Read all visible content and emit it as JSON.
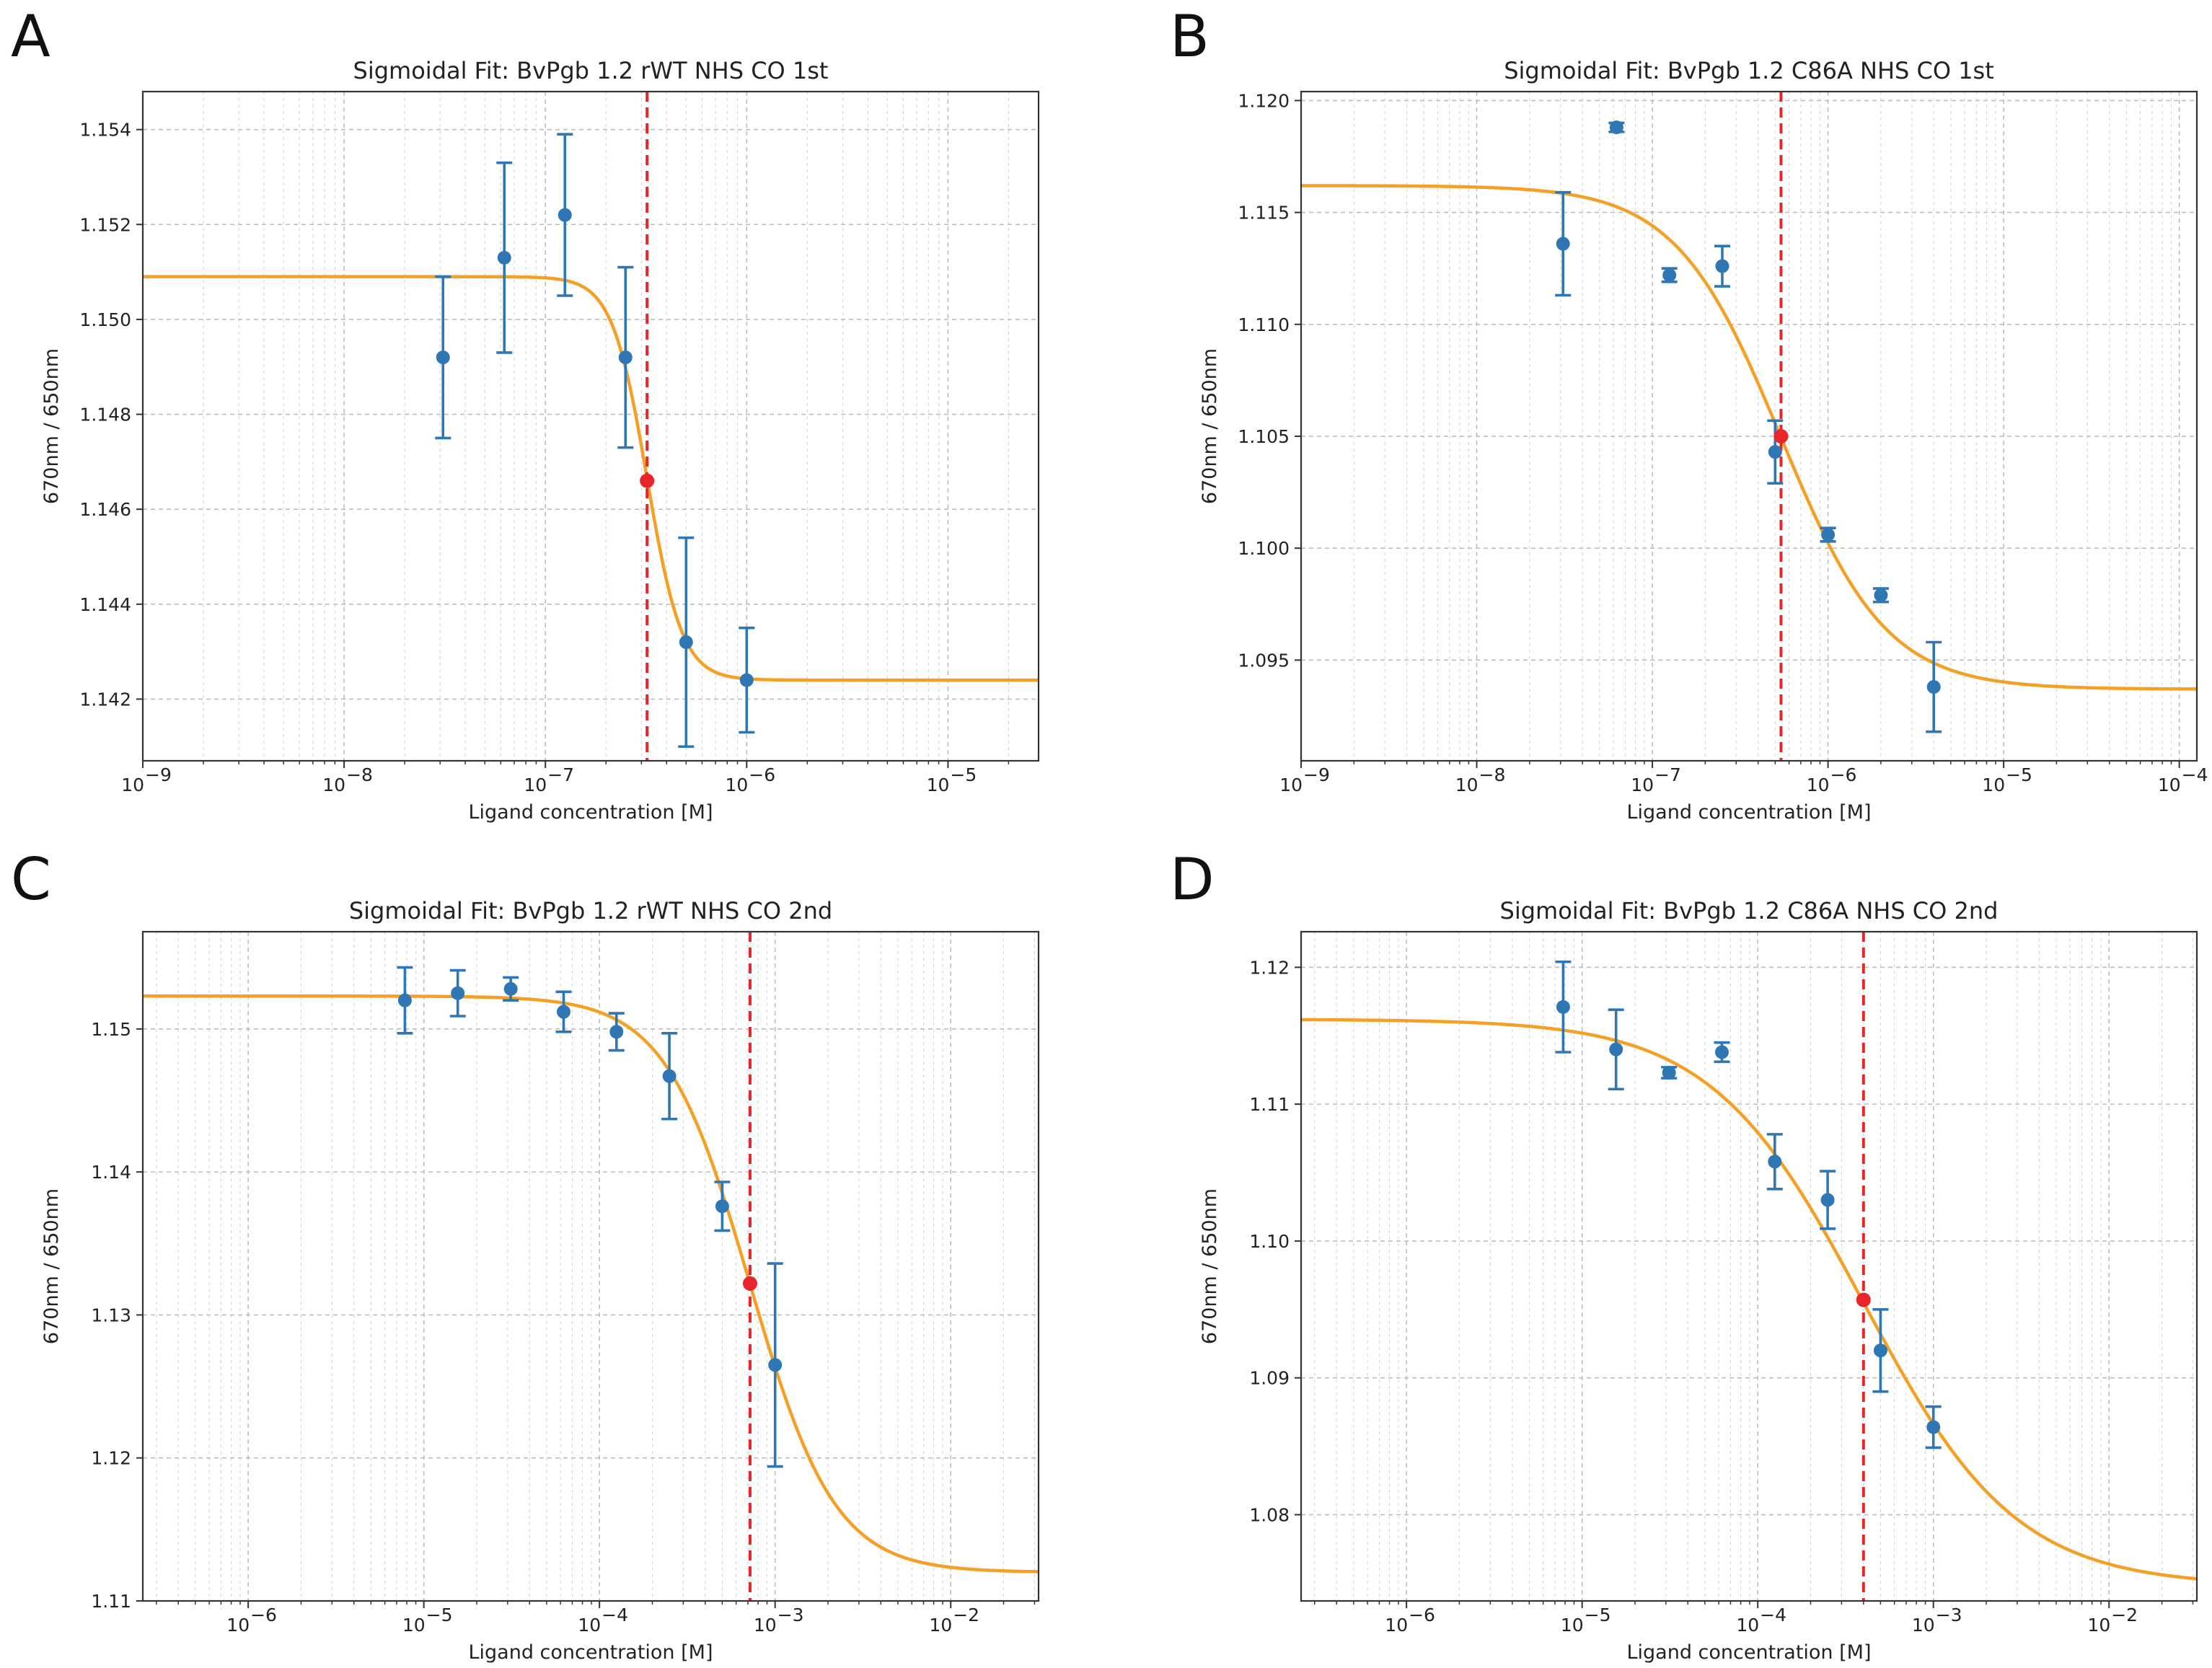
{
  "colors": {
    "points": "#2f77b4",
    "fit": "#f5a025",
    "ec50": "#e8262a",
    "background": "#ffffff"
  },
  "chart_data": [
    {
      "id": "A",
      "letter": "A",
      "type": "scatter",
      "title": "Sigmoidal Fit: BvPgb 1.2 rWT NHS CO 1st",
      "xlabel": "Ligand concentration [M]",
      "ylabel": "670nm / 650nm",
      "xscale": "log",
      "xlim_exp": [
        -9,
        -4.55
      ],
      "ylim": [
        1.1407,
        1.1548
      ],
      "yticks": [
        1.142,
        1.144,
        1.146,
        1.148,
        1.15,
        1.152,
        1.154
      ],
      "ytick_labels": [
        "1.142",
        "1.144",
        "1.146",
        "1.148",
        "1.150",
        "1.152",
        "1.154"
      ],
      "xtick_exps": [
        -9,
        -8,
        -7,
        -6,
        -5
      ],
      "xtick_labels": [
        "10",
        "10",
        "10",
        "10",
        "10"
      ],
      "xtick_sups": [
        "−9",
        "−8",
        "−7",
        "−6",
        "−5"
      ],
      "points": [
        {
          "x": 3.1e-08,
          "y": 1.1492,
          "err": 0.0017
        },
        {
          "x": 6.25e-08,
          "y": 1.1513,
          "err": 0.002
        },
        {
          "x": 1.25e-07,
          "y": 1.1522,
          "err": 0.0017
        },
        {
          "x": 2.5e-07,
          "y": 1.1492,
          "err": 0.0019
        },
        {
          "x": 5e-07,
          "y": 1.1432,
          "err": 0.0022
        },
        {
          "x": 1e-06,
          "y": 1.1424,
          "err": 0.0011
        }
      ],
      "fit": {
        "top": 1.1509,
        "bottom": 1.1424,
        "ec50": 3.2e-07,
        "hill": 5.0
      },
      "ec50_point": {
        "x": 3.2e-07,
        "y": 1.1466
      }
    },
    {
      "id": "B",
      "letter": "B",
      "type": "scatter",
      "title": "Sigmoidal Fit: BvPgb 1.2 C86A NHS CO 1st",
      "xlabel": "Ligand concentration [M]",
      "ylabel": "670nm / 650nm",
      "xscale": "log",
      "xlim_exp": [
        -9,
        -3.9
      ],
      "ylim": [
        1.0905,
        1.1204
      ],
      "yticks": [
        1.095,
        1.1,
        1.105,
        1.11,
        1.115,
        1.12
      ],
      "ytick_labels": [
        "1.095",
        "1.100",
        "1.105",
        "1.110",
        "1.115",
        "1.120"
      ],
      "xtick_exps": [
        -9,
        -8,
        -7,
        -6,
        -5,
        -4
      ],
      "xtick_labels": [
        "10",
        "10",
        "10",
        "10",
        "10",
        "10"
      ],
      "xtick_sups": [
        "−9",
        "−8",
        "−7",
        "−6",
        "−5",
        "−4"
      ],
      "points": [
        {
          "x": 3.1e-08,
          "y": 1.1136,
          "err": 0.0023
        },
        {
          "x": 6.25e-08,
          "y": 1.1188,
          "err": 0.0002
        },
        {
          "x": 1.25e-07,
          "y": 1.1122,
          "err": 0.0003
        },
        {
          "x": 2.5e-07,
          "y": 1.1126,
          "err": 0.0009
        },
        {
          "x": 5e-07,
          "y": 1.1043,
          "err": 0.0014
        },
        {
          "x": 1e-06,
          "y": 1.1006,
          "err": 0.0003
        },
        {
          "x": 2e-06,
          "y": 1.0979,
          "err": 0.0003
        },
        {
          "x": 4e-06,
          "y": 1.0938,
          "err": 0.002
        }
      ],
      "fit": {
        "top": 1.1162,
        "bottom": 1.0937,
        "ec50": 5.4e-07,
        "hill": 1.45
      },
      "ec50_point": {
        "x": 5.4e-07,
        "y": 1.105
      }
    },
    {
      "id": "C",
      "letter": "C",
      "type": "scatter",
      "title": "Sigmoidal Fit: BvPgb 1.2 rWT NHS CO 2nd",
      "xlabel": "Ligand concentration [M]",
      "ylabel": "670nm / 650nm",
      "xscale": "log",
      "xlim_exp": [
        -6.6,
        -1.5
      ],
      "ylim": [
        1.11,
        1.1568
      ],
      "yticks": [
        1.11,
        1.12,
        1.13,
        1.14,
        1.15
      ],
      "ytick_labels": [
        "1.11",
        "1.12",
        "1.13",
        "1.14",
        "1.15"
      ],
      "xtick_exps": [
        -6,
        -5,
        -4,
        -3,
        -2
      ],
      "xtick_labels": [
        "10",
        "10",
        "10",
        "10",
        "10"
      ],
      "xtick_sups": [
        "−6",
        "−5",
        "−4",
        "−3",
        "−2"
      ],
      "points": [
        {
          "x": 7.8e-06,
          "y": 1.152,
          "err": 0.0023
        },
        {
          "x": 1.56e-05,
          "y": 1.1525,
          "err": 0.0016
        },
        {
          "x": 3.125e-05,
          "y": 1.1528,
          "err": 0.0008
        },
        {
          "x": 6.25e-05,
          "y": 1.1512,
          "err": 0.0014
        },
        {
          "x": 0.000125,
          "y": 1.1498,
          "err": 0.0013
        },
        {
          "x": 0.00025,
          "y": 1.1467,
          "err": 0.003
        },
        {
          "x": 0.0005,
          "y": 1.1376,
          "err": 0.0017
        },
        {
          "x": 0.001,
          "y": 1.1265,
          "err": 0.0071
        }
      ],
      "fit": {
        "top": 1.1523,
        "bottom": 1.112,
        "ec50": 0.00072,
        "hill": 1.8
      },
      "ec50_point": {
        "x": 0.00072,
        "y": 1.1322
      }
    },
    {
      "id": "D",
      "letter": "D",
      "type": "scatter",
      "title": "Sigmoidal Fit: BvPgb 1.2 C86A NHS CO 2nd",
      "xlabel": "Ligand concentration [M]",
      "ylabel": "670nm / 650nm",
      "xscale": "log",
      "xlim_exp": [
        -6.6,
        -1.5
      ],
      "ylim": [
        1.0737,
        1.1226
      ],
      "yticks": [
        1.08,
        1.09,
        1.1,
        1.11,
        1.12
      ],
      "ytick_labels": [
        "1.08",
        "1.09",
        "1.10",
        "1.11",
        "1.12"
      ],
      "xtick_exps": [
        -6,
        -5,
        -4,
        -3,
        -2
      ],
      "xtick_labels": [
        "10",
        "10",
        "10",
        "10",
        "10"
      ],
      "xtick_sups": [
        "−6",
        "−5",
        "−4",
        "−3",
        "−2"
      ],
      "points": [
        {
          "x": 7.8e-06,
          "y": 1.1171,
          "err": 0.0033
        },
        {
          "x": 1.56e-05,
          "y": 1.114,
          "err": 0.0029
        },
        {
          "x": 3.125e-05,
          "y": 1.1123,
          "err": 0.0004
        },
        {
          "x": 6.25e-05,
          "y": 1.1138,
          "err": 0.0007
        },
        {
          "x": 0.000125,
          "y": 1.1058,
          "err": 0.002
        },
        {
          "x": 0.00025,
          "y": 1.103,
          "err": 0.0021
        },
        {
          "x": 0.0005,
          "y": 1.092,
          "err": 0.003
        },
        {
          "x": 0.001,
          "y": 1.0864,
          "err": 0.0015
        }
      ],
      "fit": {
        "top": 1.1162,
        "bottom": 1.0748,
        "ec50": 0.0004,
        "hill": 1.0
      },
      "ec50_point": {
        "x": 0.0004,
        "y": 1.0957
      }
    }
  ]
}
